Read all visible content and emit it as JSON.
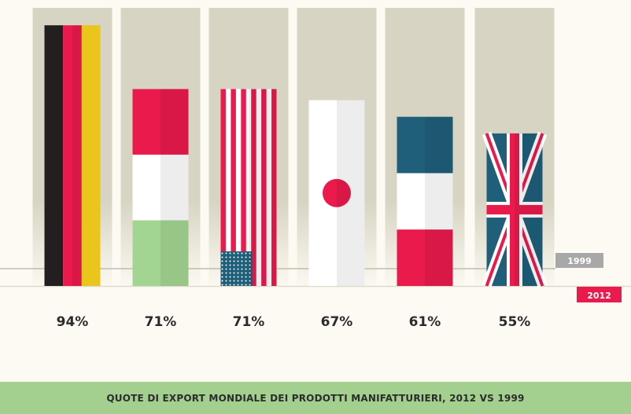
{
  "chart_data": {
    "type": "bar",
    "title": "QUOTE DI  EXPORT MONDIALE DEI PRODOTTI MANIFATTURIERI, 2012 VS 1999",
    "categories": [
      "Germany",
      "Italy",
      "United States",
      "Japan",
      "France",
      "United Kingdom"
    ],
    "flags": [
      "germany",
      "italy",
      "usa",
      "japan",
      "france",
      "uk"
    ],
    "value_labels": [
      "94%",
      "71%",
      "71%",
      "67%",
      "61%",
      "55%"
    ],
    "series": [
      {
        "name": "2012",
        "values": [
          94,
          71,
          71,
          67,
          61,
          55
        ]
      }
    ],
    "baseline_labels": {
      "y1999": "1999",
      "y2012": "2012"
    },
    "colors": {
      "background": "#fdfaf3",
      "column_bg": "#d7d4c3",
      "red_2012": "#ea1a4d",
      "grey_1999": "#a8a8a8",
      "footer": "#a3cf8f"
    }
  }
}
